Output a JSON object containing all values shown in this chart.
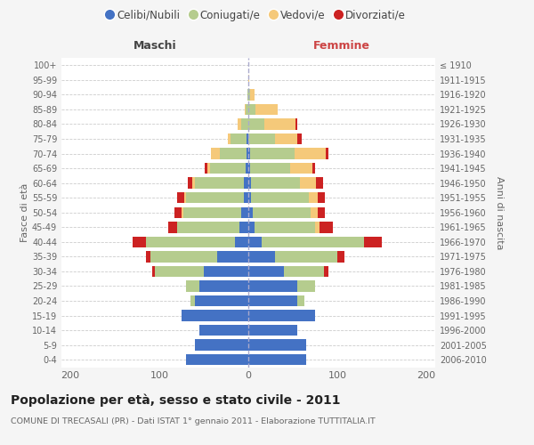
{
  "age_groups": [
    "0-4",
    "5-9",
    "10-14",
    "15-19",
    "20-24",
    "25-29",
    "30-34",
    "35-39",
    "40-44",
    "45-49",
    "50-54",
    "55-59",
    "60-64",
    "65-69",
    "70-74",
    "75-79",
    "80-84",
    "85-89",
    "90-94",
    "95-99",
    "100+"
  ],
  "birth_years": [
    "2006-2010",
    "2001-2005",
    "1996-2000",
    "1991-1995",
    "1986-1990",
    "1981-1985",
    "1976-1980",
    "1971-1975",
    "1966-1970",
    "1961-1965",
    "1956-1960",
    "1951-1955",
    "1946-1950",
    "1941-1945",
    "1936-1940",
    "1931-1935",
    "1926-1930",
    "1921-1925",
    "1916-1920",
    "1911-1915",
    "≤ 1910"
  ],
  "males": {
    "celibi": [
      70,
      60,
      55,
      75,
      60,
      55,
      50,
      35,
      15,
      10,
      8,
      5,
      5,
      3,
      2,
      2,
      0,
      0,
      0,
      0,
      0
    ],
    "coniugati": [
      0,
      0,
      0,
      0,
      5,
      15,
      55,
      75,
      100,
      70,
      65,
      65,
      55,
      40,
      30,
      18,
      8,
      3,
      1,
      0,
      0
    ],
    "vedovi": [
      0,
      0,
      0,
      0,
      0,
      0,
      0,
      0,
      0,
      0,
      2,
      2,
      3,
      3,
      10,
      3,
      4,
      1,
      0,
      0,
      0
    ],
    "divorziati": [
      0,
      0,
      0,
      0,
      0,
      0,
      3,
      5,
      15,
      10,
      8,
      8,
      5,
      3,
      0,
      0,
      0,
      0,
      0,
      0,
      0
    ]
  },
  "females": {
    "nubili": [
      65,
      65,
      55,
      75,
      55,
      55,
      40,
      30,
      15,
      7,
      5,
      3,
      3,
      2,
      2,
      0,
      0,
      0,
      0,
      0,
      0
    ],
    "coniugate": [
      0,
      0,
      0,
      0,
      8,
      20,
      45,
      70,
      115,
      68,
      65,
      65,
      55,
      45,
      50,
      30,
      18,
      8,
      2,
      0,
      0
    ],
    "vedove": [
      0,
      0,
      0,
      0,
      0,
      0,
      0,
      0,
      0,
      5,
      8,
      10,
      18,
      25,
      35,
      25,
      35,
      25,
      5,
      1,
      0
    ],
    "divorziate": [
      0,
      0,
      0,
      0,
      0,
      0,
      5,
      8,
      20,
      15,
      8,
      8,
      8,
      3,
      3,
      5,
      2,
      0,
      0,
      0,
      0
    ]
  },
  "colors": {
    "celibi_nubili": "#4472c4",
    "coniugati": "#b5cc8e",
    "vedovi": "#f5c97a",
    "divorziati": "#cc2222"
  },
  "xlim": 210,
  "title": "Popolazione per età, sesso e stato civile - 2011",
  "subtitle": "COMUNE DI TRECASALI (PR) - Dati ISTAT 1° gennaio 2011 - Elaborazione TUTTITALIA.IT",
  "ylabel": "Fasce di età",
  "ylabel_right": "Anni di nascita",
  "xlabel_left": "Maschi",
  "xlabel_right": "Femmine",
  "bg_color": "#f5f5f5",
  "plot_bg": "#ffffff",
  "grid_color": "#cccccc",
  "bar_height": 0.75
}
